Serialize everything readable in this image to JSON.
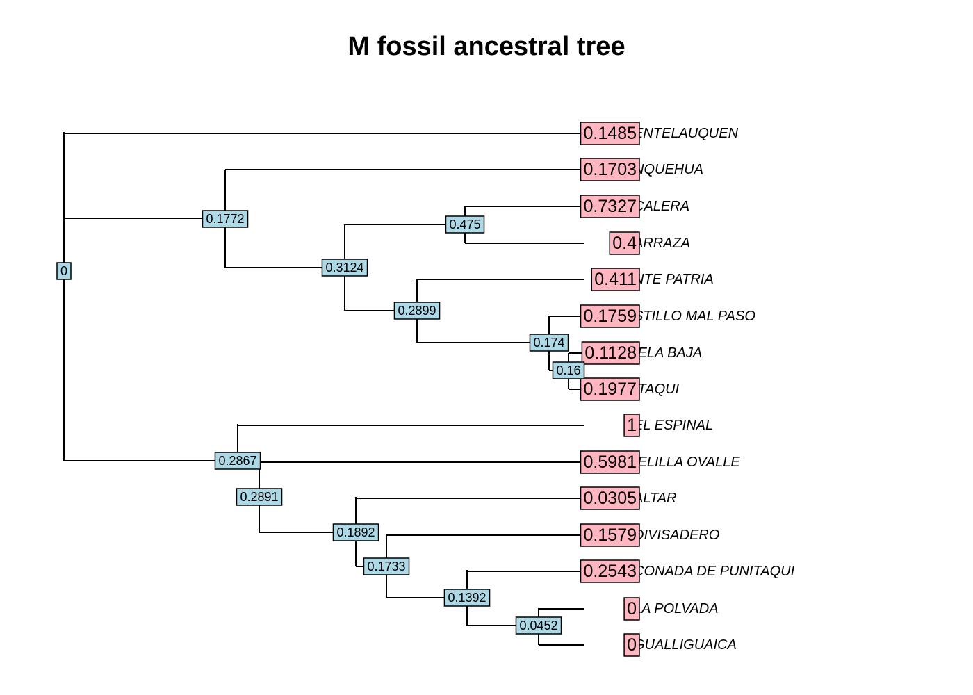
{
  "title": "M fossil ancestral tree",
  "colors": {
    "node_fill": "#add8e6",
    "tip_value_fill": "#ffb6c1",
    "edge": "#000000"
  },
  "tips": [
    {
      "label": "ENTELAUQUEN",
      "value": "0.1485"
    },
    {
      "label": "NQUEHUA",
      "value": "0.1703"
    },
    {
      "label": "CALERA",
      "value": "0.7327"
    },
    {
      "label": "ARRAZA",
      "value": "0.4"
    },
    {
      "label": "NTE PATRIA",
      "value": "0.411"
    },
    {
      "label": "STILLO MAL PASO",
      "value": "0.1759"
    },
    {
      "label": "IELA BAJA",
      "value": "0.1128"
    },
    {
      "label": "ITAQUI",
      "value": "0.1977"
    },
    {
      "label": "EL ESPINAL",
      "value": "1"
    },
    {
      "label": "IELILLA OVALLE",
      "value": "0.5981"
    },
    {
      "label": "ALTAR",
      "value": "0.0305"
    },
    {
      "label": "DIVISADERO",
      "value": "0.1579"
    },
    {
      "label": "CONADA DE PUNITAQUI",
      "value": "0.2543"
    },
    {
      "label": "LA POLVADA",
      "value": "0"
    },
    {
      "label": "GUALLIGUAICA",
      "value": "0"
    }
  ],
  "nodes": [
    {
      "id": "root",
      "value": "0"
    },
    {
      "id": "n1",
      "value": "0.1772"
    },
    {
      "id": "n2",
      "value": "0.3124"
    },
    {
      "id": "n3",
      "value": "0.475"
    },
    {
      "id": "n4",
      "value": "0.2899"
    },
    {
      "id": "n5",
      "value": "0.174"
    },
    {
      "id": "n6",
      "value": "0.16"
    },
    {
      "id": "n7",
      "value": "0.2867"
    },
    {
      "id": "n8",
      "value": "0.2891"
    },
    {
      "id": "n9",
      "value": "0.1892"
    },
    {
      "id": "n10",
      "value": "0.1733"
    },
    {
      "id": "n11",
      "value": "0.1392"
    },
    {
      "id": "n12",
      "value": "0.0452"
    }
  ]
}
